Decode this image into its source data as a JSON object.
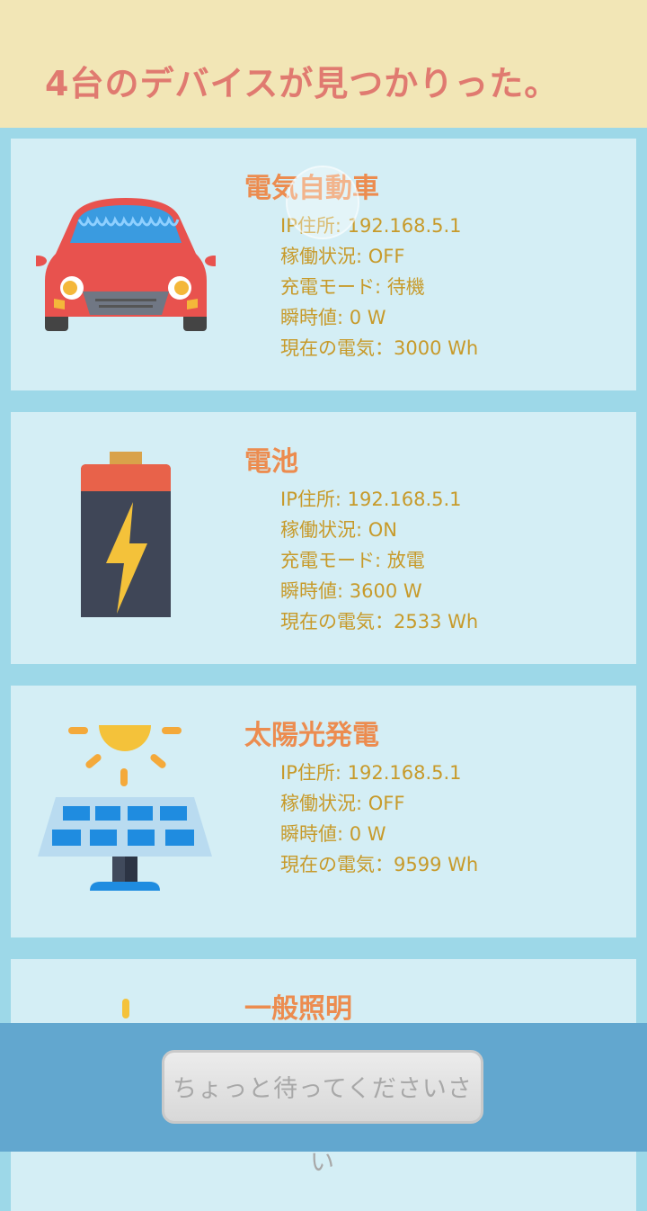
{
  "header": {
    "title": "4台のデバイスが見つかりった。"
  },
  "devices": [
    {
      "name": "電気自動車",
      "icon": "car-icon",
      "props": [
        "IP住所: 192.168.5.1",
        "稼働状況: OFF",
        "充電モード: 待機",
        "瞬時値: 0 W",
        "現在の電気：3000 Wh"
      ]
    },
    {
      "name": "電池",
      "icon": "battery-icon",
      "props": [
        "IP住所: 192.168.5.1",
        "稼働状況: ON",
        "充電モード: 放電",
        "瞬時値: 3600 W",
        "現在の電気：2533 Wh"
      ]
    },
    {
      "name": "太陽光発電",
      "icon": "solar-panel-icon",
      "props": [
        "IP住所: 192.168.5.1",
        "稼働状況: OFF",
        "瞬時値: 0 W",
        "現在の電気：9599 Wh"
      ]
    },
    {
      "name": "一般照明",
      "icon": "light-icon",
      "props": []
    }
  ],
  "footer": {
    "wait_label": "ちょっと待ってくださいさい"
  },
  "colors": {
    "header_bg": "#f2e6b6",
    "title": "#e07a70",
    "device_name": "#ec8c4f",
    "prop_text": "#c79a2a",
    "card_bg": "#d4eef5",
    "page_bg": "#9dd8e8",
    "bottom_bar": "#62a7cf"
  }
}
